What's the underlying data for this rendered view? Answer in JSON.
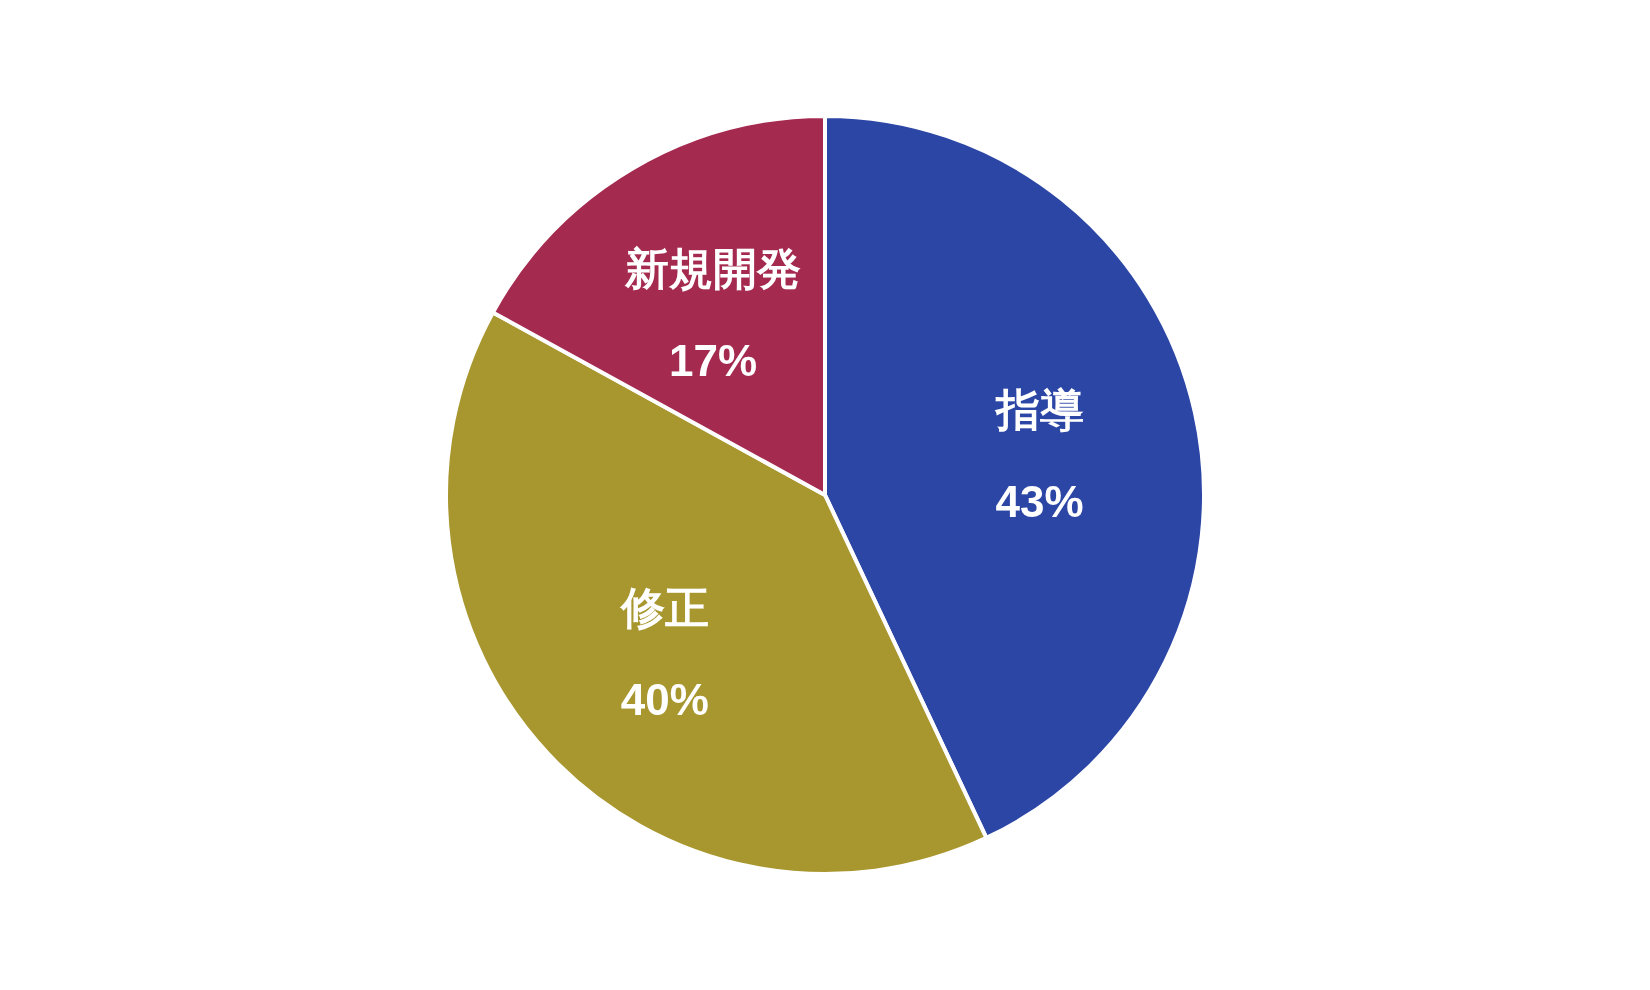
{
  "chart_data": {
    "type": "pie",
    "categories": [
      "指導",
      "修正",
      "新規開発"
    ],
    "values": [
      43,
      40,
      17
    ],
    "value_labels": [
      "43%",
      "40%",
      "17%"
    ],
    "colors": [
      "#2c46a6",
      "#a8962e",
      "#a52a50"
    ]
  }
}
